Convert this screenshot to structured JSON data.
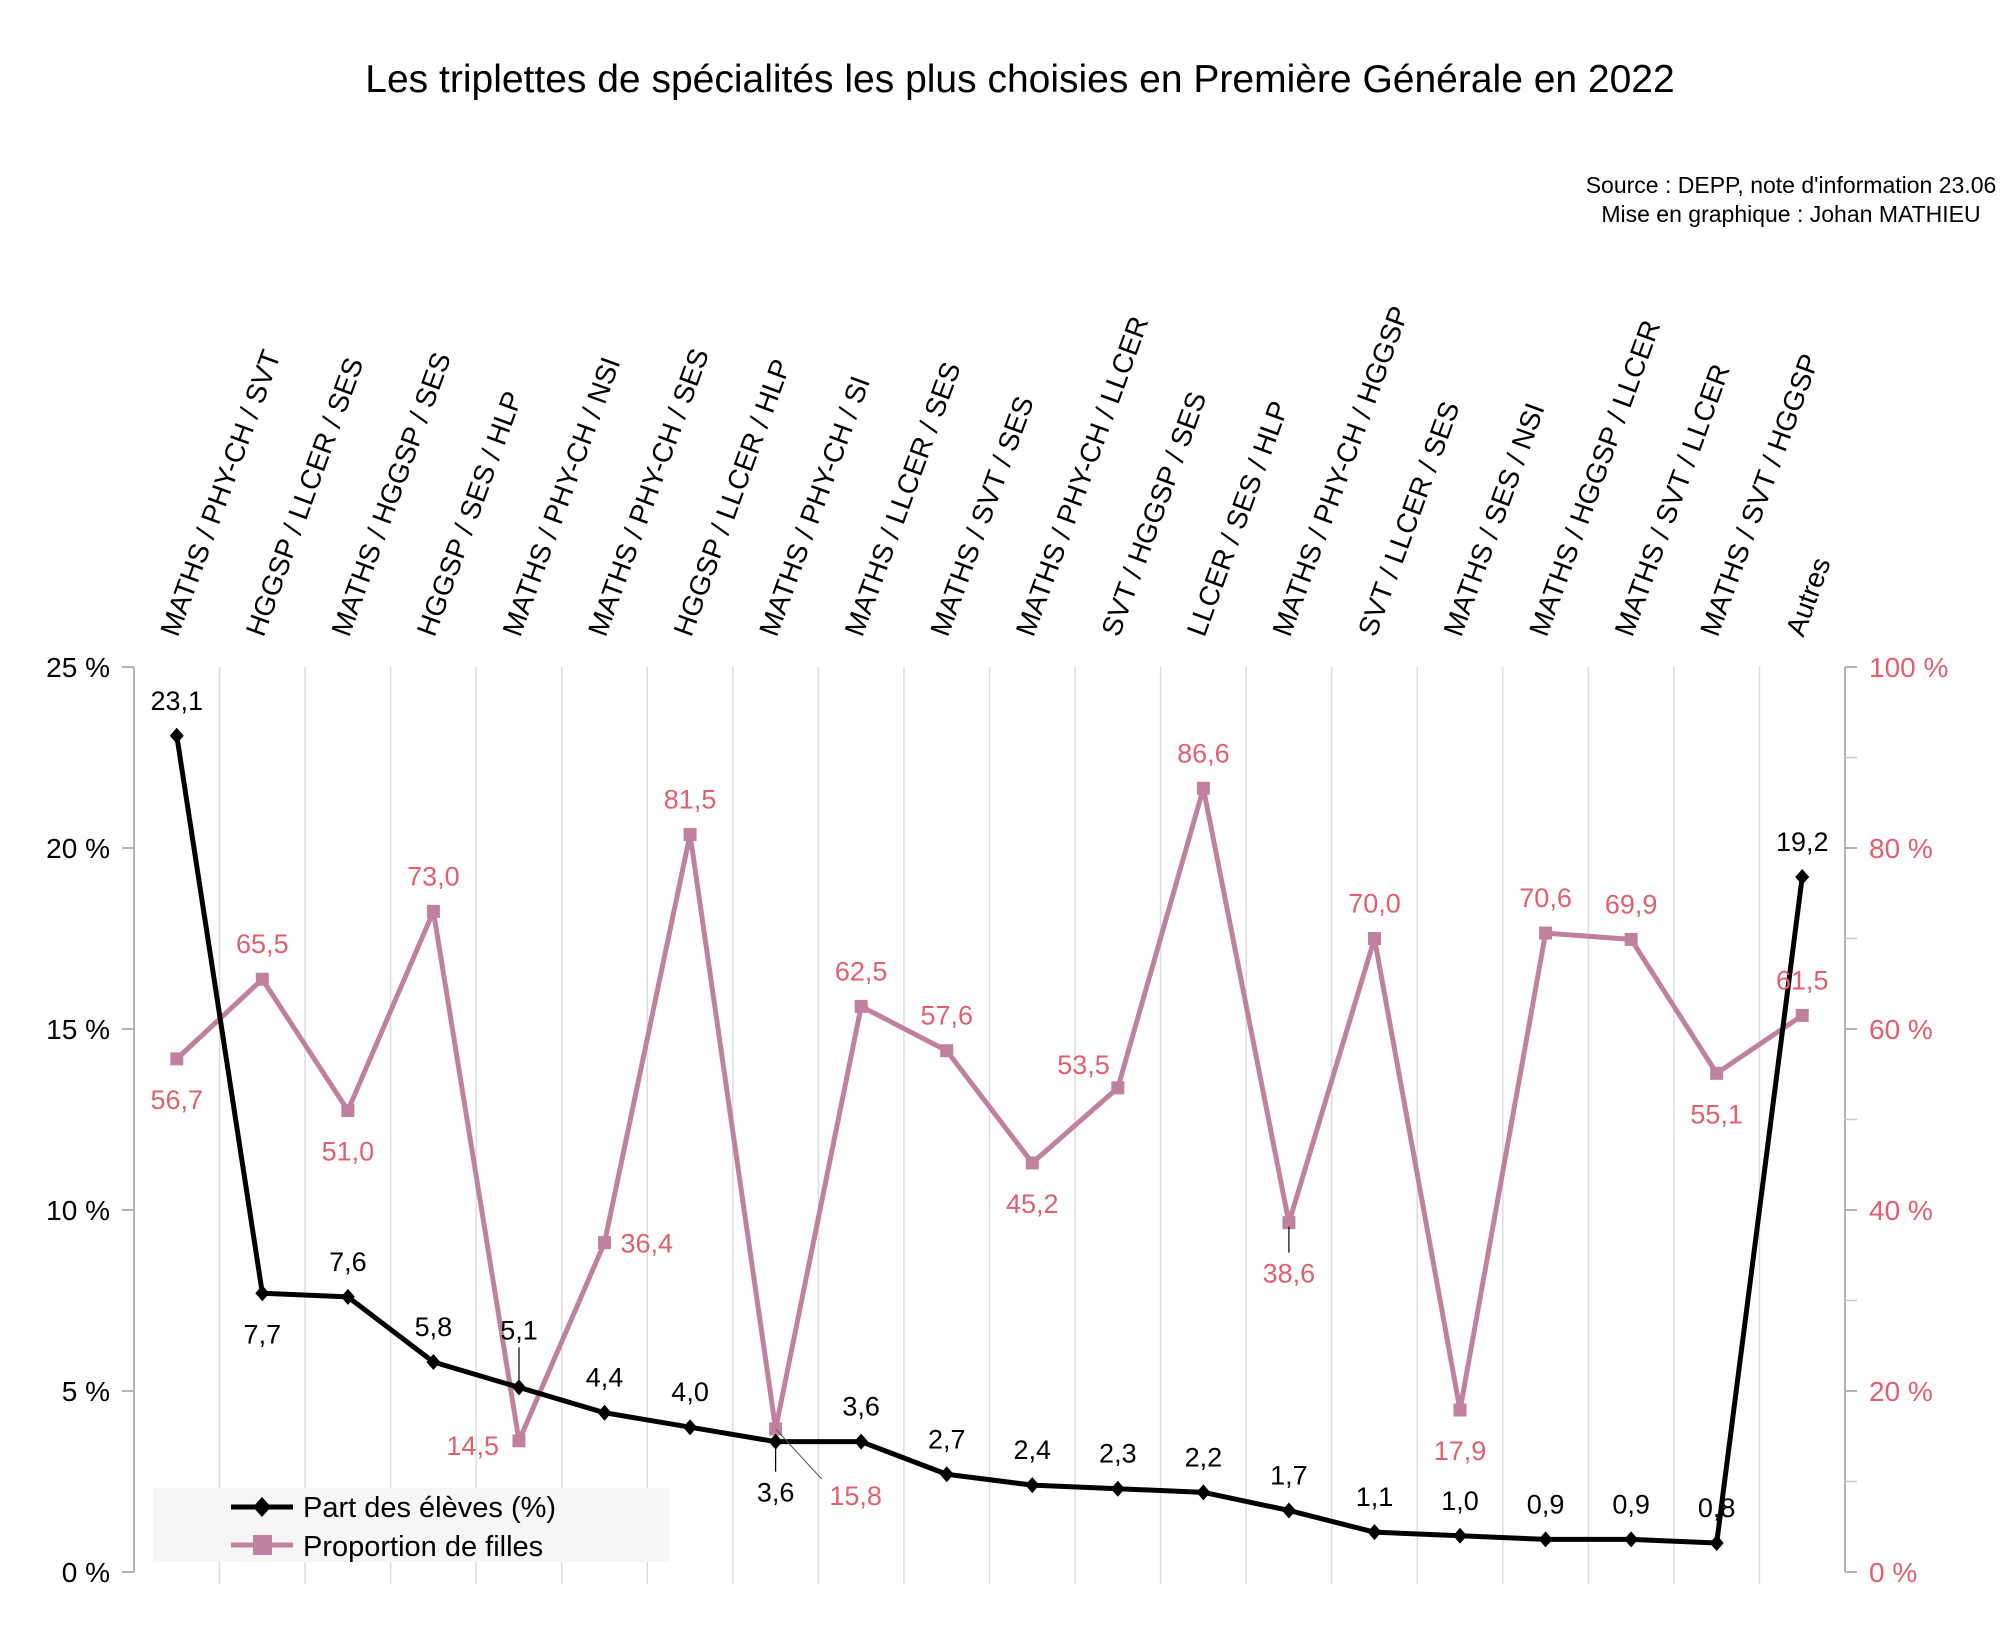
{
  "chart_data": {
    "type": "line",
    "title": "Les triplettes de spécialités les plus choisies en Première Générale en 2022",
    "source_lines": [
      "Source : DEPP, note d'information 23.06",
      "Mise en graphique : Johan MATHIEU"
    ],
    "categories": [
      "MATHS / PHY-CH / SVT",
      "HGGSP / LLCER / SES",
      "MATHS / HGGSP / SES",
      "HGGSP / SES / HLP",
      "MATHS / PHY-CH / NSI",
      "MATHS / PHY-CH / SES",
      "HGGSP / LLCER / HLP",
      "MATHS / PHY-CH / SI",
      "MATHS / LLCER / SES",
      "MATHS / SVT / SES",
      "MATHS / PHY-CH / LLCER",
      "SVT / HGGSP / SES",
      "LLCER / SES / HLP",
      "MATHS / PHY-CH / HGGSP",
      "SVT / LLCER / SES",
      "MATHS / SES / NSI",
      "MATHS / HGGSP / LLCER",
      "MATHS / SVT / LLCER",
      "MATHS / SVT / HGGSP",
      "Autres"
    ],
    "series": [
      {
        "name": "Part des élèves (%)",
        "axis": "left",
        "color": "#000000",
        "marker": "diamond",
        "values": [
          23.1,
          7.7,
          7.6,
          5.8,
          5.1,
          4.4,
          4.0,
          3.6,
          3.6,
          2.7,
          2.4,
          2.3,
          2.2,
          1.7,
          1.1,
          1.0,
          0.9,
          0.9,
          0.8,
          19.2
        ],
        "labels": [
          "23,1",
          "7,7",
          "7,6",
          "5,8",
          "5,1",
          "4,4",
          "4,0",
          "3,6",
          "3,6",
          "2,7",
          "2,4",
          "2,3",
          "2,2",
          "1,7",
          "1,1",
          "1,0",
          "0,9",
          "0,9",
          "0,8",
          "19,2"
        ]
      },
      {
        "name": "Proportion de filles",
        "axis": "right",
        "color": "#c0819f",
        "label_color": "#e0606e",
        "marker": "square",
        "values": [
          56.7,
          65.5,
          51.0,
          73.0,
          14.5,
          36.4,
          81.5,
          15.8,
          62.5,
          57.6,
          45.2,
          53.5,
          86.6,
          38.6,
          70.0,
          17.9,
          70.6,
          69.9,
          55.1,
          61.5
        ],
        "labels": [
          "56,7",
          "65,5",
          "51,0",
          "73,0",
          "14,5",
          "36,4",
          "81,5",
          "15,8",
          "62,5",
          "57,6",
          "45,2",
          "53,5",
          "86,6",
          "38,6",
          "70,0",
          "17,9",
          "70,6",
          "69,9",
          "55,1",
          "61,5"
        ]
      }
    ],
    "y_left": {
      "range": [
        0,
        25
      ],
      "ticks": [
        0,
        5,
        10,
        15,
        20,
        25
      ],
      "tick_labels": [
        "0 %",
        "5 %",
        "10 %",
        "15 %",
        "20 %",
        "25 %"
      ]
    },
    "y_right": {
      "range": [
        0,
        100
      ],
      "ticks": [
        0,
        20,
        40,
        60,
        80,
        100
      ],
      "minor_ticks": [
        10,
        30,
        50,
        70,
        90
      ],
      "tick_labels": [
        "0 %",
        "20 %",
        "40 %",
        "60 %",
        "80 %",
        "100 %"
      ],
      "color": "#e0606e"
    },
    "xlabel": "",
    "grid": "vertical",
    "legend": {
      "position": "bottom-left",
      "entries": [
        "Part des élèves (%)",
        "Proportion de filles"
      ]
    }
  }
}
